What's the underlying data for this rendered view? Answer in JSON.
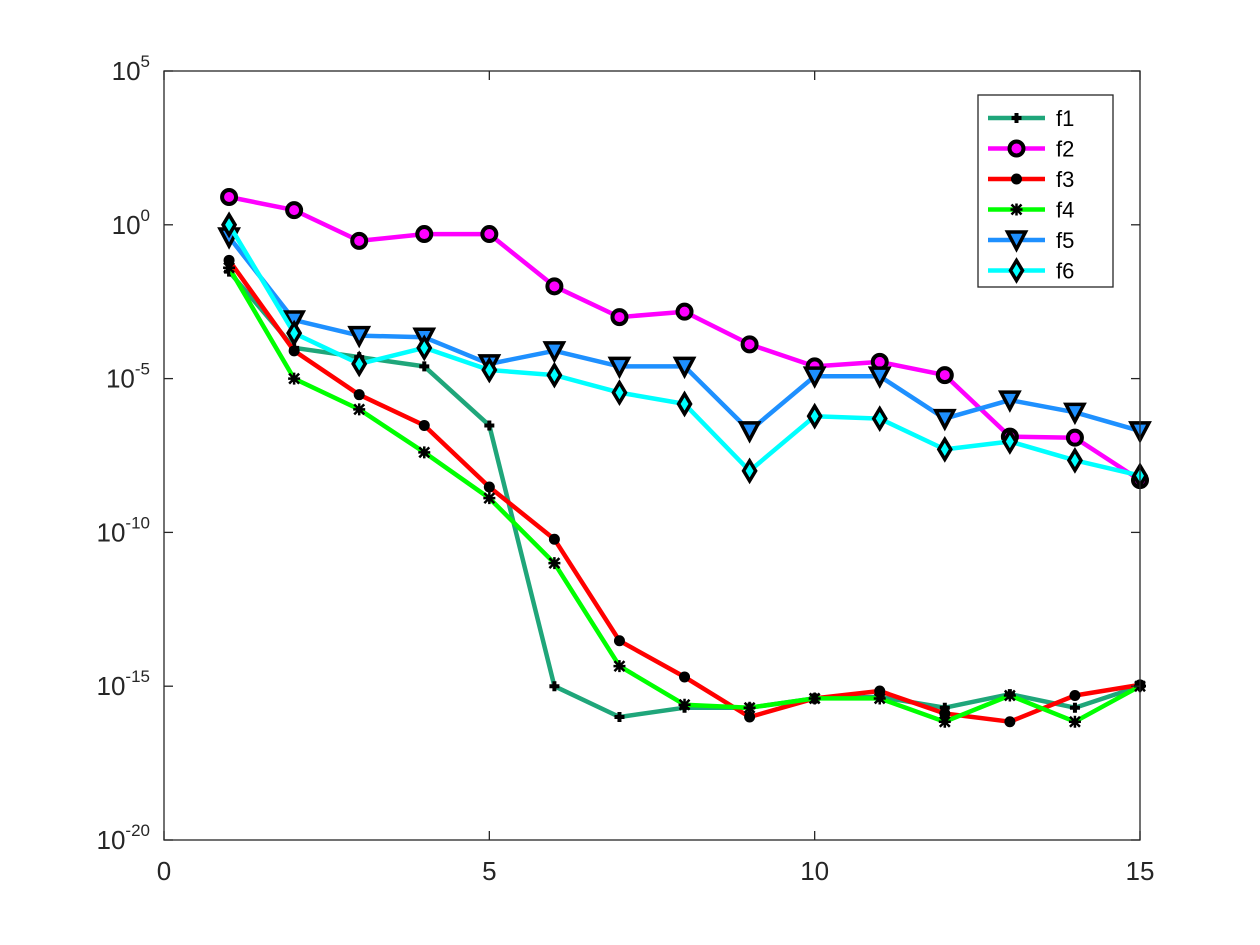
{
  "chart_data": {
    "type": "line",
    "title": "",
    "xlabel": "",
    "ylabel": "",
    "xlim": [
      0,
      15
    ],
    "ylim_log10": [
      -20,
      5
    ],
    "yscale": "log",
    "grid": false,
    "legend_position": "top-right",
    "x_ticks": [
      {
        "value": 0,
        "label": "0"
      },
      {
        "value": 5,
        "label": "5"
      },
      {
        "value": 10,
        "label": "10"
      },
      {
        "value": 15,
        "label": "15"
      }
    ],
    "y_ticks": [
      {
        "value": 5,
        "base": "10",
        "exp": "5"
      },
      {
        "value": 0,
        "base": "10",
        "exp": "0"
      },
      {
        "value": -5,
        "base": "10",
        "exp": "-5"
      },
      {
        "value": -10,
        "base": "10",
        "exp": "-10"
      },
      {
        "value": -15,
        "base": "10",
        "exp": "-15"
      },
      {
        "value": -20,
        "base": "10",
        "exp": "-20"
      }
    ],
    "x": [
      1,
      2,
      3,
      4,
      5,
      6,
      7,
      8,
      9,
      10,
      11,
      12,
      13,
      14,
      15
    ],
    "series": [
      {
        "name": "f1",
        "color": "#1fa67a",
        "marker": "plus",
        "values": [
          0.03,
          0.0001,
          5e-05,
          2.5e-05,
          3e-07,
          1e-15,
          1e-16,
          2e-16,
          2e-16,
          4e-16,
          4.5e-16,
          2e-16,
          5.5e-16,
          2e-16,
          1e-15
        ]
      },
      {
        "name": "f2",
        "color": "#ff00ff",
        "marker": "circle",
        "values": [
          8,
          3,
          0.3,
          0.5,
          0.5,
          0.01,
          0.001,
          0.0015,
          0.00013,
          2.5e-05,
          3.5e-05,
          1.3e-05,
          1.3e-07,
          1.2e-07,
          5e-09
        ]
      },
      {
        "name": "f3",
        "color": "#ff0000",
        "marker": "dot",
        "values": [
          0.07,
          8e-05,
          3e-06,
          3e-07,
          3e-09,
          6e-11,
          3e-14,
          2e-15,
          1e-16,
          4e-16,
          7e-16,
          1.3e-16,
          7e-17,
          5e-16,
          1.1e-15
        ]
      },
      {
        "name": "f4",
        "color": "#00ff00",
        "marker": "asterisk",
        "values": [
          0.04,
          1e-05,
          1e-06,
          4e-08,
          1.3e-09,
          1e-11,
          4.5e-15,
          2.5e-16,
          2e-16,
          4e-16,
          4e-16,
          7e-17,
          5e-16,
          7e-17,
          1e-15
        ]
      },
      {
        "name": "f5",
        "color": "#1e90ff",
        "marker": "triangle-down",
        "values": [
          0.4,
          0.0008,
          0.00025,
          0.00022,
          3e-05,
          8e-05,
          2.5e-05,
          2.5e-05,
          2e-07,
          1.2e-05,
          1.2e-05,
          5e-07,
          2e-06,
          8e-07,
          2e-07
        ]
      },
      {
        "name": "f6",
        "color": "#00ffff",
        "marker": "diamond",
        "values": [
          1,
          0.0003,
          3e-05,
          0.0001,
          1.9e-05,
          1.3e-05,
          3.5e-06,
          1.5e-06,
          1e-08,
          6e-07,
          5e-07,
          5e-08,
          9e-08,
          2.2e-08,
          7e-09
        ]
      }
    ]
  }
}
